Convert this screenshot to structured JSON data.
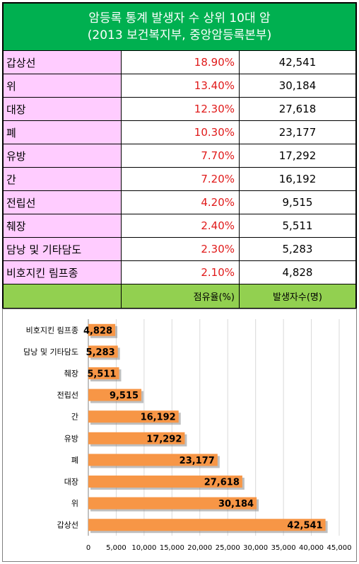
{
  "table": {
    "title_line1": "암등록 통계 발생자 수 상위 10대 암",
    "title_line2": "(2013 보건복지부, 중앙암등록본부)",
    "rows": [
      {
        "name": "갑상선",
        "share": "18.90%",
        "count": "42,541"
      },
      {
        "name": "위",
        "share": "13.40%",
        "count": "30,184"
      },
      {
        "name": "대장",
        "share": "12.30%",
        "count": "27,618"
      },
      {
        "name": "폐",
        "share": "10.30%",
        "count": "23,177"
      },
      {
        "name": "유방",
        "share": "7.70%",
        "count": "17,292"
      },
      {
        "name": "간",
        "share": "7.20%",
        "count": "16,192"
      },
      {
        "name": "전립선",
        "share": "4.20%",
        "count": "9,515"
      },
      {
        "name": "췌장",
        "share": "2.40%",
        "count": "5,511"
      },
      {
        "name": "담낭 및 기타담도",
        "share": "2.30%",
        "count": "5,283"
      },
      {
        "name": "비호지킨 림프종",
        "share": "2.10%",
        "count": "4,828"
      }
    ],
    "footer_share": "점유율(%)",
    "footer_count": "발생자수(명)"
  },
  "colors": {
    "header_bg": "#00b050",
    "name_bg": "#ffccff",
    "footer_bg": "#92d050",
    "share_text": "#e01a1a",
    "bar": "#f79646"
  },
  "chart_data": {
    "type": "bar",
    "orientation": "horizontal",
    "categories": [
      "비호지킨 림프종",
      "담낭 및 기타담도",
      "췌장",
      "전립선",
      "간",
      "유방",
      "폐",
      "대장",
      "위",
      "갑상선"
    ],
    "values": [
      4828,
      5283,
      5511,
      9515,
      16192,
      17292,
      23177,
      27618,
      30184,
      42541
    ],
    "data_labels": [
      "4,828",
      "5,283",
      "5,511",
      "9,515",
      "16,192",
      "17,292",
      "23,177",
      "27,618",
      "30,184",
      "42,541"
    ],
    "x_ticks": [
      0,
      5000,
      10000,
      15000,
      20000,
      25000,
      30000,
      35000,
      40000,
      45000
    ],
    "x_tick_labels": [
      "0",
      "5,000",
      "10,000",
      "15,000",
      "20,000",
      "25,000",
      "30,000",
      "35,000",
      "40,000",
      "45,000"
    ],
    "xlim": [
      0,
      45000
    ],
    "grid": true,
    "legend": "none"
  }
}
